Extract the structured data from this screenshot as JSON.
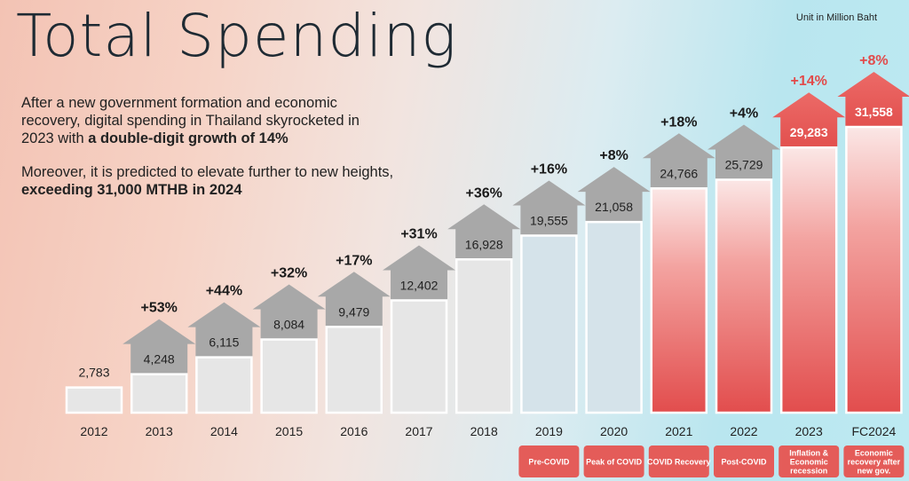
{
  "title": "Total Spending",
  "unit_note": "Unit in Million Baht",
  "paragraph1": {
    "text": "After a new government formation and economic recovery, digital spending in Thailand skyrocketed in 2023 with ",
    "highlight": "a double-digit growth of 14%"
  },
  "paragraph2": {
    "text": "Moreover, it is predicted to elevate further to new heights, ",
    "highlight": "exceeding 31,000 MTHB in 2024"
  },
  "colors": {
    "highlight_red": "#e24a4a",
    "arrow_gray": "#a8a8a8",
    "bar_light": "#e6e6e6"
  },
  "chart_data": {
    "type": "bar",
    "title": "Total Spending",
    "ylabel": "Million Baht",
    "categories": [
      "2012",
      "2013",
      "2014",
      "2015",
      "2016",
      "2017",
      "2018",
      "2019",
      "2020",
      "2021",
      "2022",
      "2023",
      "FC2024"
    ],
    "values": [
      2783,
      4248,
      6115,
      8084,
      9479,
      12402,
      16928,
      19555,
      21058,
      24766,
      25729,
      29283,
      31558
    ],
    "value_labels": [
      "2,783",
      "4,248",
      "6,115",
      "8,084",
      "9,479",
      "12,402",
      "16,928",
      "19,555",
      "21,058",
      "24,766",
      "25,729",
      "29,283",
      "31,558"
    ],
    "growth_labels": [
      "",
      "+53%",
      "+44%",
      "+32%",
      "+17%",
      "+31%",
      "+36%",
      "+16%",
      "+8%",
      "+18%",
      "+4%",
      "+14%",
      "+8%"
    ],
    "annotations": [
      {
        "year": "2019",
        "text": "Pre-COVID"
      },
      {
        "year": "2020",
        "text": "Peak of COVID"
      },
      {
        "year": "2021",
        "text": "COVID Recovery"
      },
      {
        "year": "2022",
        "text": "Post-COVID"
      },
      {
        "year": "2023",
        "text": "Inflation & Economic recession"
      },
      {
        "year": "FC2024",
        "text": "Economic recovery after new gov."
      }
    ],
    "ylim": [
      0,
      31558
    ]
  }
}
